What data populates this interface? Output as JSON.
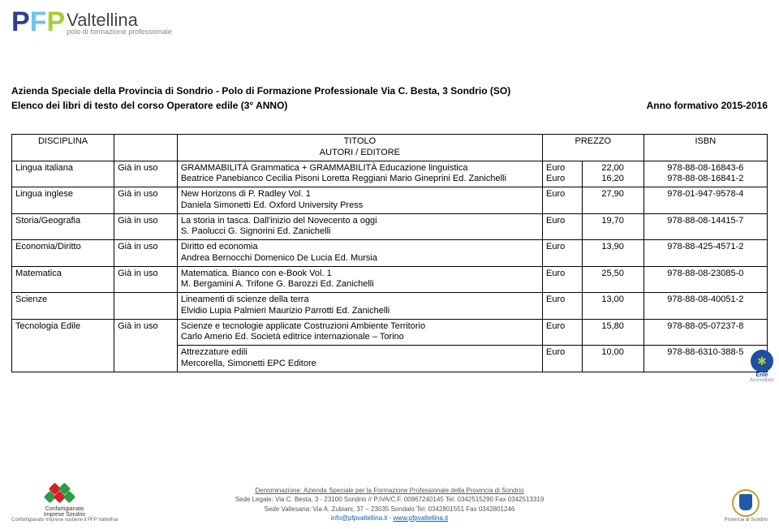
{
  "logo": {
    "letters": [
      "P",
      "F",
      "P"
    ],
    "wordmark": "Valtellina",
    "subtitle": "polo di formazione professionale"
  },
  "header": {
    "line1": "Azienda Speciale della Provincia di Sondrio - Polo di Formazione Professionale Via C. Besta, 3 Sondrio (SO)",
    "line2_left": "Elenco dei libri di testo del corso Operatore edile  (3° ANNO)",
    "line2_right": "Anno formativo 2015-2016"
  },
  "table": {
    "head": {
      "disc": "DISCIPLINA",
      "titolo": "TITOLO",
      "autori": "AUTORI / EDITORE",
      "prezzo": "PREZZO",
      "isbn": "ISBN"
    },
    "rows": [
      {
        "disc": "Lingua italiana",
        "stato": "Già in uso",
        "title": "GRAMMABILITÀ Grammatica + GRAMMABILITÀ Educazione linguistica",
        "author": "Beatrice Panebianco Cecilia Pisoni Loretta Reggiani Mario Gineprini Ed. Zanichelli",
        "price_lines": [
          "Euro",
          "Euro"
        ],
        "value_lines": [
          "22,00",
          "16,20"
        ],
        "isbn_lines": [
          "978-88-08-16843-6",
          "978-88-08-16841-2"
        ]
      },
      {
        "disc": "Lingua inglese",
        "stato": "Già in uso",
        "title": "New Horizons di P. Radley Vol. 1",
        "author": "Daniela Simonetti Ed. Oxford University Press",
        "price_lines": [
          "Euro"
        ],
        "value_lines": [
          "27,90"
        ],
        "isbn_lines": [
          "978-01-947-9578-4"
        ]
      },
      {
        "disc": "Storia/Geografia",
        "stato": "Già in uso",
        "title": "La storia in tasca. Dall'inizio del Novecento a oggi",
        "author": "S. Paolucci G. Signorini Ed. Zanichelli",
        "price_lines": [
          "Euro"
        ],
        "value_lines": [
          "19,70"
        ],
        "isbn_lines": [
          "978-88-08-14415-7"
        ]
      },
      {
        "disc": "Economia/Diritto",
        "stato": "Già in uso",
        "title": "Diritto ed economia",
        "author": "Andrea Bernocchi Domenico De Lucia  Ed. Mursia",
        "price_lines": [
          "Euro"
        ],
        "value_lines": [
          "13,90"
        ],
        "isbn_lines": [
          "978-88-425-4571-2"
        ]
      },
      {
        "disc": "Matematica",
        "stato": "Già in uso",
        "title": "Matematica. Bianco con e-Book   Vol. 1",
        "author": "M. Bergamini  A. Trifone G. Barozzi  Ed. Zanichelli",
        "price_lines": [
          "Euro"
        ],
        "value_lines": [
          "25,50"
        ],
        "isbn_lines": [
          "978-88-08-23085-0"
        ]
      },
      {
        "disc": "Scienze",
        "stato": "",
        "title": "Lineamenti di scienze della terra",
        "author": "Elvidio Lupia Palmieri   Maurizio Parrotti Ed. Zanichelli",
        "price_lines": [
          "Euro"
        ],
        "value_lines": [
          "13,00"
        ],
        "isbn_lines": [
          "978-88-08-40051-2"
        ]
      },
      {
        "disc": "Tecnologia Edile",
        "stato": "Già in uso",
        "title": "Scienze e tecnologie applicate Costruzioni Ambiente Territorio",
        "author": "Carlo Amerio Ed. Società editrice internazionale – Torino",
        "price_lines": [
          "Euro"
        ],
        "value_lines": [
          "15,80"
        ],
        "isbn_lines": [
          "978-88-05-07237-8"
        ],
        "rowspan": 2
      },
      {
        "title": "Attrezzature edili",
        "author": "Mercorella, Simonetti EPC Editore",
        "price_lines": [
          "Euro"
        ],
        "value_lines": [
          "10,00"
        ],
        "isbn_lines": [
          "978-88-6310-388-5"
        ]
      }
    ]
  },
  "footer": {
    "denom": "Denominazione: Azienda Speciale per la Formazione Professionale della Provincia di Sondrio",
    "sede_legale": "Sede Legale: Via C. Besta, 3 - 23100 Sondrio // P.IVA/C.F. 00867240145 Tel. 0342515290 Fax 0342513319",
    "sede_valle": "Sede Vallesana: Via A. Zubiani, 37 – 23035 Sondalo Tel. 0342801551 Fax 0342801246",
    "email": "info@pfpvaltellina.it",
    "site": "www.pfpvaltellina.it",
    "left_line1": "Confartigianato",
    "left_line2": "Imprese Sondrio",
    "left_sub": "Confartigianato Imprese sostiene il PFP Valtellina",
    "right_text": "Provincia di Sondrio",
    "ente1": "Ente",
    "ente2": "Accreditato"
  }
}
